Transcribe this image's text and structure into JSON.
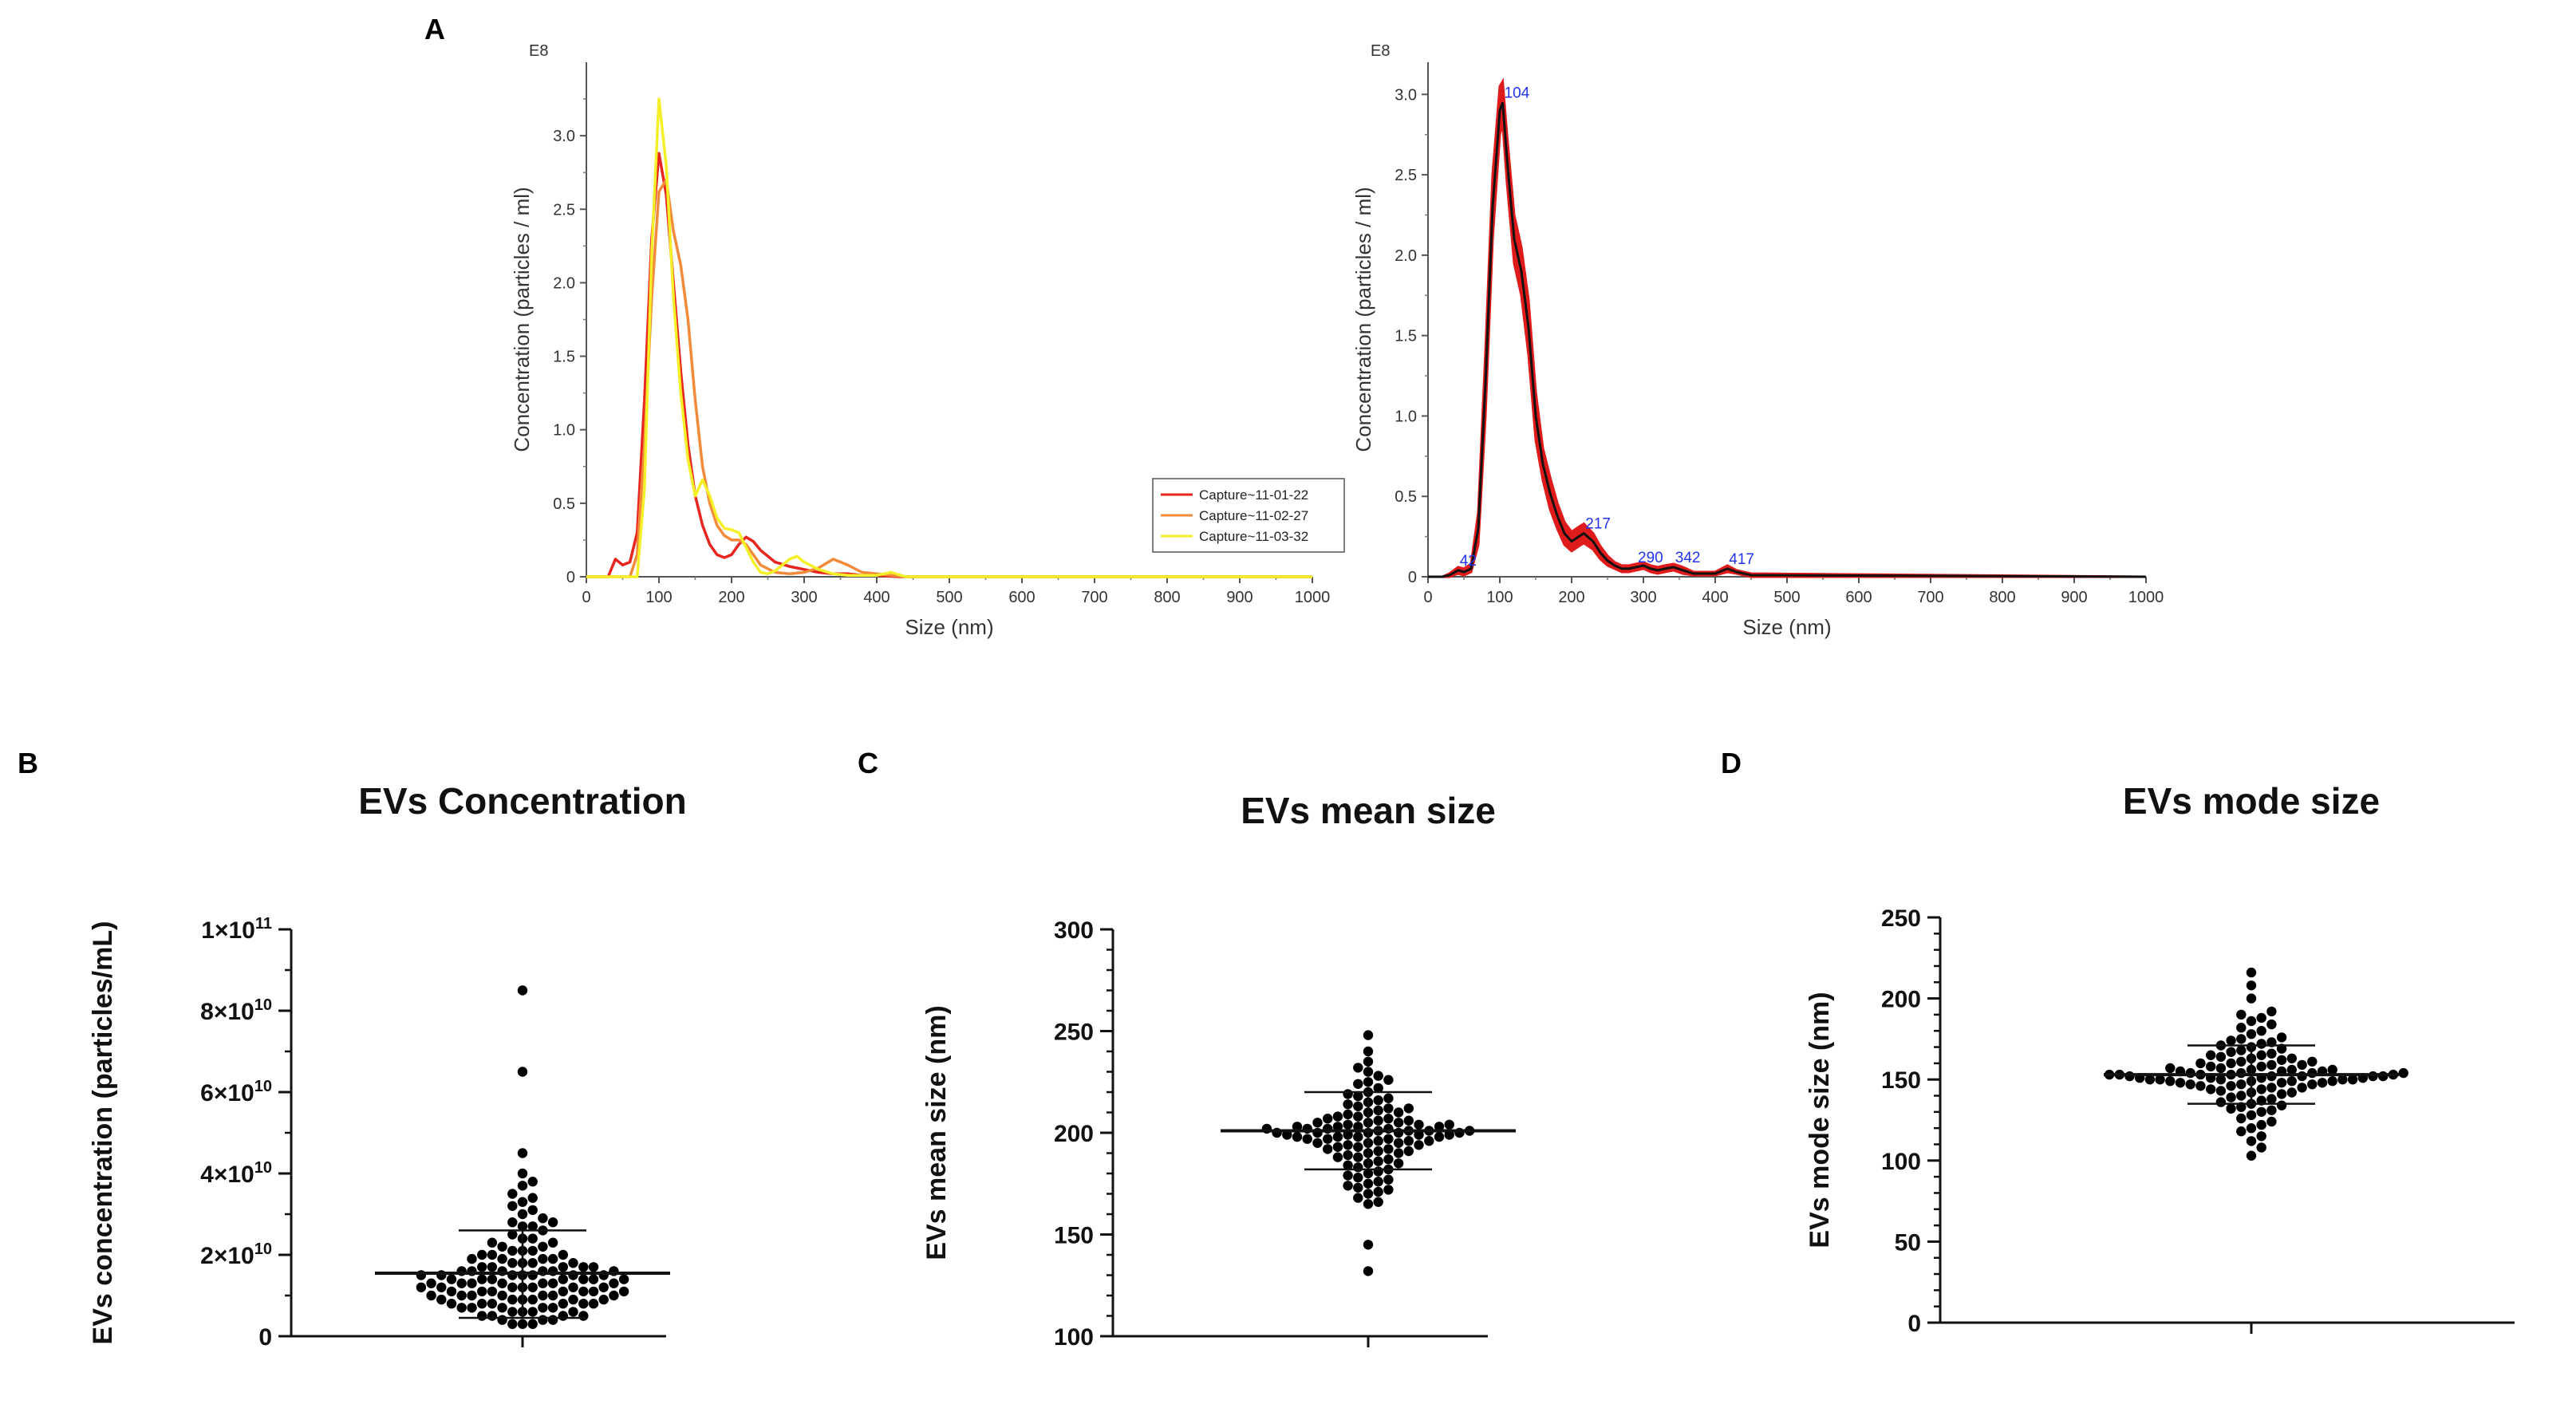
{
  "panels": {
    "A": "A",
    "B": "B",
    "C": "C",
    "D": "D"
  },
  "chart_data": [
    {
      "id": "nta_left",
      "type": "line",
      "exponent_label": "E8",
      "xlabel": "Size (nm)",
      "ylabel": "Concentration (particles / ml)",
      "xlim": [
        0,
        1000
      ],
      "ylim": [
        0,
        3.5
      ],
      "xticks": [
        0,
        100,
        200,
        300,
        400,
        500,
        600,
        700,
        800,
        900,
        1000
      ],
      "yticks": [
        0,
        0.5,
        1.0,
        1.5,
        2.0,
        2.5,
        3.0
      ],
      "ytick_labels": [
        "0",
        "0.5",
        "1.0",
        "1.5",
        "2.0",
        "2.5",
        "3.0"
      ],
      "legend": [
        "Capture~11-01-22",
        "Capture~11-02-27",
        "Capture~11-03-32"
      ],
      "series": [
        {
          "name": "Capture~11-01-22",
          "color": "#e8251f",
          "x": [
            0,
            30,
            40,
            50,
            60,
            70,
            80,
            90,
            100,
            110,
            120,
            130,
            140,
            150,
            160,
            170,
            180,
            190,
            200,
            210,
            220,
            230,
            240,
            260,
            280,
            300,
            320,
            340,
            360,
            380,
            400,
            430,
            1000
          ],
          "y": [
            0,
            0,
            0.12,
            0.08,
            0.1,
            0.3,
            1.2,
            2.3,
            2.88,
            2.6,
            2.0,
            1.4,
            0.9,
            0.55,
            0.35,
            0.22,
            0.15,
            0.13,
            0.15,
            0.22,
            0.27,
            0.24,
            0.18,
            0.1,
            0.07,
            0.05,
            0.03,
            0.02,
            0.02,
            0.01,
            0.01,
            0,
            0
          ]
        },
        {
          "name": "Capture~11-02-27",
          "color": "#f28a3a",
          "x": [
            0,
            60,
            70,
            80,
            90,
            100,
            110,
            120,
            130,
            140,
            150,
            160,
            170,
            180,
            190,
            200,
            210,
            220,
            230,
            240,
            260,
            280,
            300,
            320,
            340,
            360,
            380,
            400,
            420,
            440,
            1000
          ],
          "y": [
            0,
            0,
            0.15,
            0.9,
            1.9,
            2.62,
            2.7,
            2.35,
            2.12,
            1.75,
            1.2,
            0.75,
            0.5,
            0.35,
            0.28,
            0.25,
            0.25,
            0.22,
            0.15,
            0.08,
            0.03,
            0.02,
            0.03,
            0.06,
            0.12,
            0.08,
            0.03,
            0.02,
            0.01,
            0,
            0
          ]
        },
        {
          "name": "Capture~11-03-32",
          "color": "#f5ef28",
          "x": [
            0,
            70,
            80,
            90,
            100,
            110,
            120,
            130,
            140,
            150,
            160,
            170,
            180,
            190,
            200,
            210,
            220,
            230,
            240,
            250,
            260,
            270,
            280,
            290,
            300,
            320,
            340,
            360,
            380,
            400,
            420,
            440,
            1000
          ],
          "y": [
            0,
            0,
            0.6,
            2.2,
            3.25,
            2.8,
            1.9,
            1.25,
            0.8,
            0.55,
            0.66,
            0.55,
            0.4,
            0.33,
            0.32,
            0.3,
            0.2,
            0.1,
            0.03,
            0.02,
            0.04,
            0.08,
            0.12,
            0.14,
            0.1,
            0.05,
            0.02,
            0.01,
            0.01,
            0.01,
            0.03,
            0,
            0
          ]
        }
      ]
    },
    {
      "id": "nta_right",
      "type": "area",
      "exponent_label": "E8",
      "xlabel": "Size (nm)",
      "ylabel": "Concentration (particles / ml)",
      "xlim": [
        0,
        1000
      ],
      "ylim": [
        0,
        3.2
      ],
      "xticks": [
        0,
        100,
        200,
        300,
        400,
        500,
        600,
        700,
        800,
        900,
        1000
      ],
      "yticks": [
        0,
        0.5,
        1.0,
        1.5,
        2.0,
        2.5,
        3.0
      ],
      "ytick_labels": [
        "0",
        "0.5",
        "1.0",
        "1.5",
        "2.0",
        "2.5",
        "3.0"
      ],
      "series": [
        {
          "name": "mean",
          "color": "#111111",
          "x": [
            0,
            20,
            30,
            42,
            50,
            60,
            70,
            80,
            90,
            100,
            104,
            110,
            120,
            130,
            140,
            150,
            160,
            170,
            180,
            190,
            200,
            210,
            217,
            230,
            240,
            250,
            260,
            270,
            280,
            290,
            300,
            310,
            320,
            330,
            342,
            355,
            370,
            385,
            400,
            417,
            430,
            450,
            1000
          ],
          "y": [
            0,
            0,
            0.01,
            0.04,
            0.03,
            0.05,
            0.3,
            1.2,
            2.3,
            2.9,
            2.95,
            2.6,
            2.1,
            1.9,
            1.55,
            1.0,
            0.7,
            0.52,
            0.38,
            0.27,
            0.22,
            0.25,
            0.27,
            0.22,
            0.15,
            0.1,
            0.07,
            0.05,
            0.05,
            0.06,
            0.07,
            0.05,
            0.04,
            0.05,
            0.06,
            0.04,
            0.02,
            0.02,
            0.02,
            0.05,
            0.03,
            0.01,
            0
          ]
        },
        {
          "name": "upper",
          "color": "#e8181e",
          "x": [
            0,
            20,
            30,
            42,
            50,
            60,
            70,
            80,
            90,
            100,
            104,
            110,
            120,
            130,
            140,
            150,
            160,
            170,
            180,
            190,
            200,
            210,
            217,
            230,
            240,
            250,
            260,
            270,
            280,
            290,
            300,
            310,
            320,
            330,
            342,
            355,
            370,
            385,
            400,
            417,
            430,
            450,
            1000
          ],
          "y": [
            0,
            0,
            0.02,
            0.06,
            0.05,
            0.08,
            0.4,
            1.4,
            2.5,
            3.05,
            3.08,
            2.75,
            2.25,
            2.05,
            1.72,
            1.15,
            0.8,
            0.62,
            0.46,
            0.34,
            0.28,
            0.31,
            0.33,
            0.27,
            0.19,
            0.13,
            0.09,
            0.07,
            0.07,
            0.08,
            0.09,
            0.07,
            0.06,
            0.07,
            0.08,
            0.06,
            0.03,
            0.03,
            0.03,
            0.07,
            0.04,
            0.02,
            0
          ]
        },
        {
          "name": "lower",
          "color": "#e8181e",
          "x": [
            0,
            20,
            30,
            42,
            50,
            60,
            70,
            80,
            90,
            100,
            104,
            110,
            120,
            130,
            140,
            150,
            160,
            170,
            180,
            190,
            200,
            210,
            217,
            230,
            240,
            250,
            260,
            270,
            280,
            290,
            300,
            310,
            320,
            330,
            342,
            355,
            370,
            385,
            400,
            417,
            430,
            450,
            1000
          ],
          "y": [
            0,
            0,
            0,
            0.02,
            0.01,
            0.03,
            0.2,
            1.0,
            2.1,
            2.75,
            2.82,
            2.45,
            1.95,
            1.75,
            1.38,
            0.85,
            0.6,
            0.42,
            0.3,
            0.2,
            0.16,
            0.19,
            0.21,
            0.17,
            0.11,
            0.07,
            0.05,
            0.03,
            0.03,
            0.04,
            0.05,
            0.03,
            0.02,
            0.03,
            0.04,
            0.02,
            0.01,
            0.01,
            0.01,
            0.03,
            0.02,
            0,
            0
          ]
        }
      ],
      "peak_labels": [
        {
          "text": "42",
          "x": 42,
          "y": 0.04
        },
        {
          "text": "104",
          "x": 104,
          "y": 2.95
        },
        {
          "text": "217",
          "x": 217,
          "y": 0.27
        },
        {
          "text": "290",
          "x": 290,
          "y": 0.06
        },
        {
          "text": "342",
          "x": 342,
          "y": 0.06
        },
        {
          "text": "417",
          "x": 417,
          "y": 0.05
        }
      ]
    },
    {
      "id": "concentration",
      "type": "scatter",
      "title": "EVs Concentration",
      "ylabel": "EVs concentration (particles/mL)",
      "ylim": [
        0,
        100
      ],
      "yticks": [
        0,
        20,
        40,
        60,
        80,
        100
      ],
      "ytick_labels": [
        {
          "base": "0",
          "exp": ""
        },
        {
          "base": "2×10",
          "exp": "10"
        },
        {
          "base": "4×10",
          "exp": "10"
        },
        {
          "base": "6×10",
          "exp": "10"
        },
        {
          "base": "8×10",
          "exp": "10"
        },
        {
          "base": "1×10",
          "exp": "11"
        }
      ],
      "minor_step": 10,
      "values_unit": "1e9 particles/mL",
      "values": [
        85,
        65,
        45,
        40,
        38,
        37,
        35,
        34,
        33,
        32,
        31,
        30,
        29,
        28,
        28,
        27,
        27,
        26,
        25,
        24,
        24,
        23,
        23,
        22,
        22,
        21,
        21,
        21,
        20,
        20,
        20,
        19,
        19,
        19,
        19,
        18,
        18,
        18,
        18,
        17,
        17,
        17,
        17,
        17,
        16,
        16,
        16,
        16,
        16,
        16,
        15,
        15,
        15,
        15,
        15,
        15,
        15,
        14,
        14,
        14,
        14,
        14,
        14,
        14,
        13,
        13,
        13,
        13,
        13,
        13,
        13,
        12,
        12,
        12,
        12,
        12,
        12,
        12,
        11,
        11,
        11,
        11,
        11,
        11,
        11,
        10,
        10,
        10,
        10,
        10,
        10,
        10,
        9,
        9,
        9,
        9,
        9,
        9,
        8,
        8,
        8,
        8,
        8,
        8,
        7,
        7,
        7,
        7,
        7,
        6,
        6,
        6,
        6,
        5,
        5,
        5,
        5,
        4,
        4,
        4,
        3,
        3,
        3
      ],
      "mean": 15.5,
      "sd_upper": 26,
      "sd_lower": 4.5
    },
    {
      "id": "mean_size",
      "type": "scatter",
      "title": "EVs mean size",
      "ylabel": "EVs mean size (nm)",
      "ylim": [
        100,
        300
      ],
      "yticks": [
        100,
        150,
        200,
        250,
        300
      ],
      "ytick_labels": [
        {
          "base": "100",
          "exp": ""
        },
        {
          "base": "150",
          "exp": ""
        },
        {
          "base": "200",
          "exp": ""
        },
        {
          "base": "250",
          "exp": ""
        },
        {
          "base": "300",
          "exp": ""
        }
      ],
      "minor_step": 10,
      "values": [
        248,
        145,
        132,
        240,
        235,
        232,
        230,
        228,
        226,
        225,
        224,
        222,
        220,
        219,
        218,
        217,
        216,
        215,
        214,
        213,
        212,
        212,
        211,
        210,
        210,
        209,
        208,
        208,
        207,
        207,
        206,
        206,
        205,
        205,
        205,
        204,
        204,
        204,
        203,
        203,
        203,
        203,
        202,
        202,
        202,
        202,
        201,
        201,
        201,
        201,
        200,
        200,
        200,
        200,
        200,
        199,
        199,
        199,
        199,
        198,
        198,
        198,
        198,
        197,
        197,
        197,
        196,
        196,
        196,
        195,
        195,
        195,
        194,
        194,
        193,
        193,
        192,
        192,
        191,
        191,
        190,
        190,
        189,
        188,
        188,
        187,
        186,
        185,
        185,
        184,
        183,
        182,
        181,
        180,
        179,
        178,
        177,
        176,
        175,
        174,
        173,
        172,
        171,
        170,
        168,
        166,
        165
      ],
      "mean": 201,
      "sd_upper": 220,
      "sd_lower": 182
    },
    {
      "id": "mode_size",
      "type": "scatter",
      "title": "EVs mode size",
      "ylabel": "EVs mode size (nm)",
      "ylim": [
        0,
        250
      ],
      "yticks": [
        0,
        50,
        100,
        150,
        200,
        250
      ],
      "ytick_labels": [
        {
          "base": "0",
          "exp": ""
        },
        {
          "base": "50",
          "exp": ""
        },
        {
          "base": "100",
          "exp": ""
        },
        {
          "base": "150",
          "exp": ""
        },
        {
          "base": "200",
          "exp": ""
        },
        {
          "base": "250",
          "exp": ""
        }
      ],
      "minor_step": 10,
      "values": [
        216,
        208,
        200,
        192,
        190,
        188,
        186,
        184,
        182,
        180,
        178,
        176,
        175,
        174,
        173,
        172,
        171,
        170,
        169,
        168,
        167,
        166,
        165,
        165,
        164,
        163,
        163,
        162,
        161,
        161,
        160,
        160,
        159,
        159,
        158,
        158,
        157,
        157,
        156,
        156,
        156,
        155,
        155,
        155,
        154,
        154,
        154,
        154,
        153,
        153,
        153,
        153,
        153,
        152,
        152,
        152,
        152,
        152,
        151,
        151,
        151,
        151,
        150,
        150,
        150,
        150,
        150,
        149,
        149,
        149,
        149,
        148,
        148,
        148,
        147,
        147,
        147,
        146,
        146,
        145,
        145,
        144,
        144,
        143,
        142,
        142,
        141,
        140,
        139,
        138,
        137,
        136,
        135,
        134,
        133,
        132,
        131,
        130,
        128,
        126,
        124,
        122,
        120,
        118,
        115,
        112,
        108,
        103
      ],
      "mean": 153,
      "sd_upper": 171,
      "sd_lower": 135
    }
  ]
}
